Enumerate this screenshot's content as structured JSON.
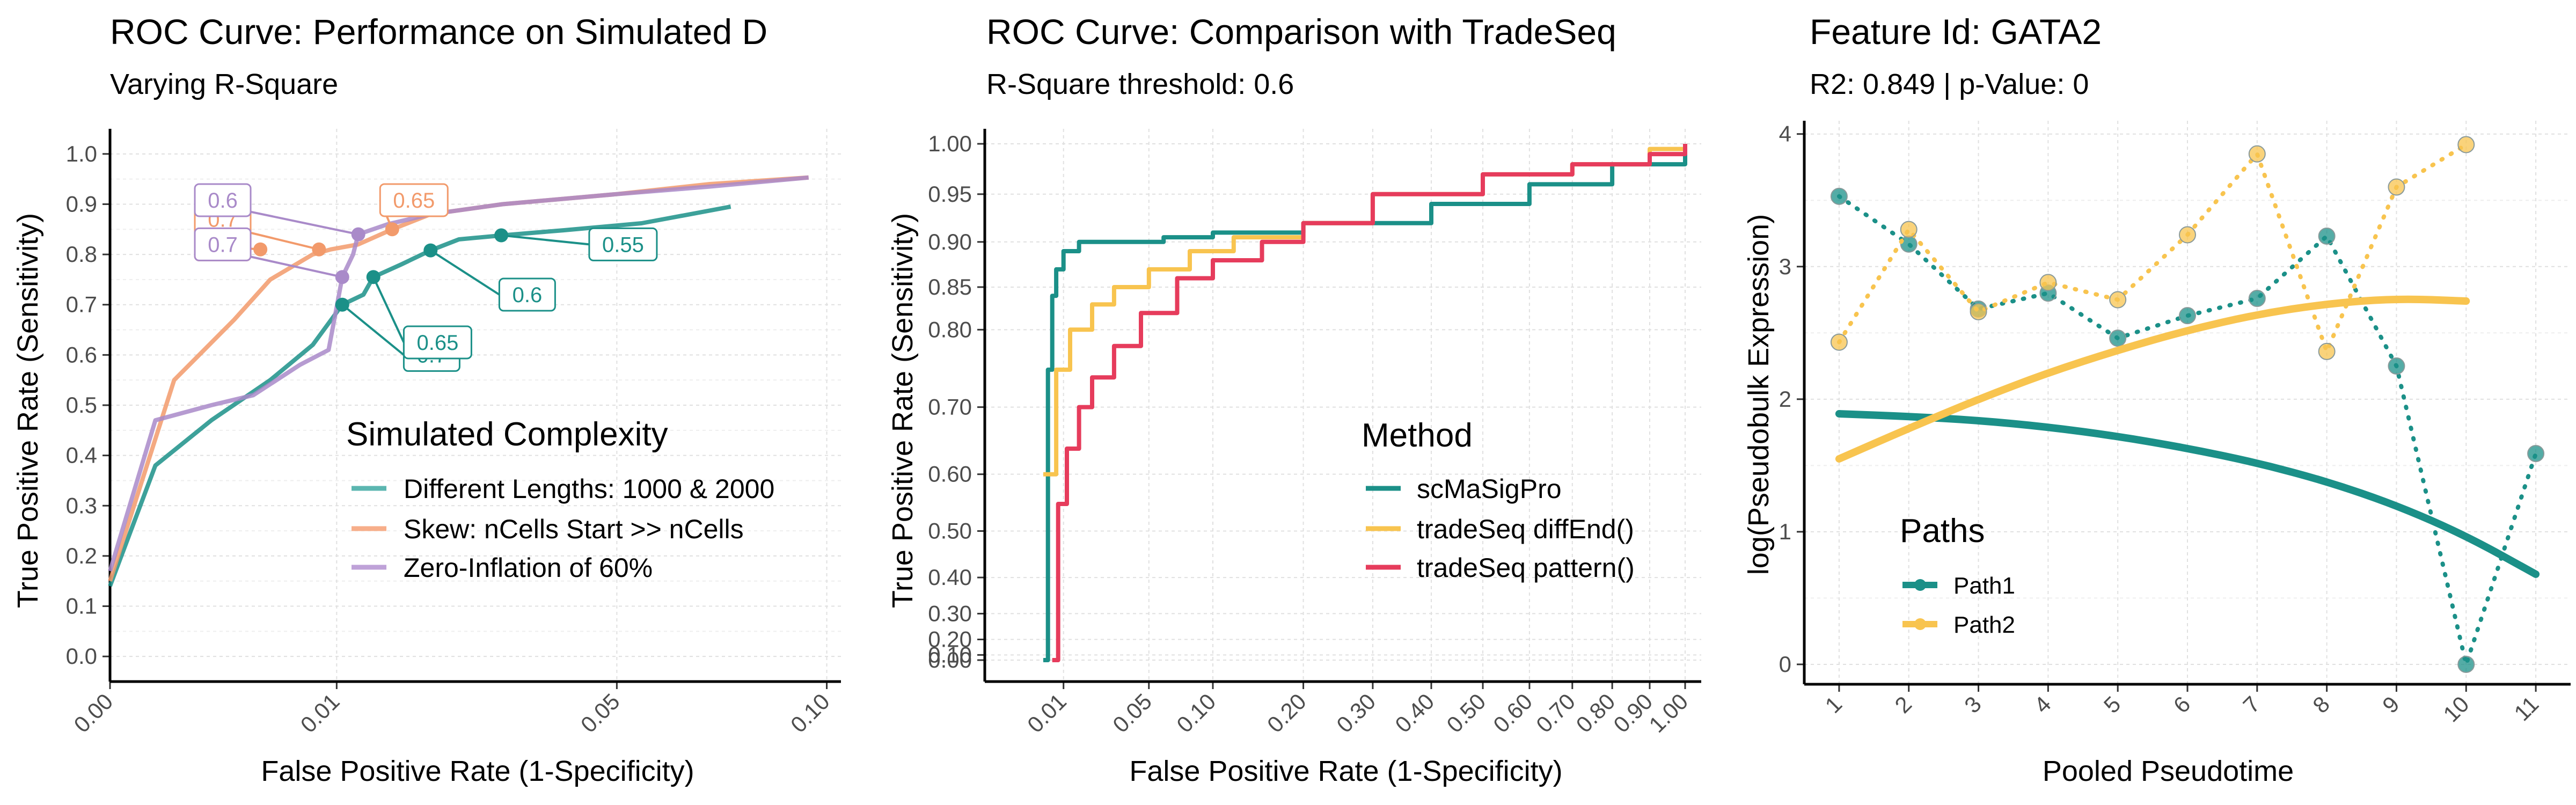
{
  "colors": {
    "teal": "#1b9088",
    "orange": "#f29a6b",
    "purple": "#a98ac9",
    "yellow": "#f8c44f",
    "red": "#e63c5c",
    "teal_legend": "#5bb6b0",
    "orange_legend": "#f7ae8a",
    "purple_legend": "#bfa2d8"
  },
  "panel1": {
    "title": "ROC Curve: Performance on Simulated D",
    "subtitle": "Varying R-Square",
    "xlabel": "False Positive Rate (1-Specificity)",
    "ylabel": "True Positive Rate (Sensitivity)",
    "legend_title": "Simulated Complexity",
    "legend": [
      "Different Lengths: 1000 & 2000",
      "Skew: nCells Start >> nCells",
      "Zero-Inflation of 60%"
    ]
  },
  "panel2": {
    "title": "ROC Curve: Comparison with TradeSeq",
    "subtitle": "R-Square threshold: 0.6",
    "xlabel": "False Positive Rate (1-Specificity)",
    "ylabel": "True Positive Rate (Sensitivity)",
    "legend_title": "Method",
    "legend": [
      "scMaSigPro",
      "tradeSeq diffEnd()",
      "tradeSeq pattern()"
    ]
  },
  "panel3": {
    "title": "Feature Id: GATA2",
    "subtitle": "R2: 0.849 | p-Value: 0",
    "xlabel": "Pooled Pseudotime",
    "ylabel": "log(Pseudobulk Expression)",
    "legend_title": "Paths",
    "legend": [
      "Path1",
      "Path2"
    ]
  },
  "chart_data": [
    {
      "type": "line",
      "title": "ROC Curve: Performance on Simulated D",
      "subtitle": "Varying R-Square",
      "xlabel": "False Positive Rate (1-Specificity)",
      "ylabel": "True Positive Rate (Sensitivity)",
      "x_scale": "sqrt",
      "xlim": [
        0,
        0.104
      ],
      "ylim": [
        -0.05,
        1.05
      ],
      "xticks": [
        0.0,
        0.01,
        0.05,
        0.1
      ],
      "xtick_labels": [
        "0.00",
        "0.01",
        "0.05",
        "0.10"
      ],
      "yticks": [
        0.0,
        0.1,
        0.2,
        0.3,
        0.4,
        0.5,
        0.6,
        0.7,
        0.8,
        0.9,
        1.0
      ],
      "ytick_labels": [
        "0.0",
        "0.1",
        "0.2",
        "0.3",
        "0.4",
        "0.5",
        "0.6",
        "0.7",
        "0.8",
        "0.9",
        "1.0"
      ],
      "grid": true,
      "legend_title": "Simulated Complexity",
      "legend_position": "bottom-right",
      "series": [
        {
          "name": "Different Lengths: 1000 & 2000",
          "color": "#1b9088",
          "points": [
            [
              0,
              0.14
            ],
            [
              0.0004,
              0.38
            ],
            [
              0.002,
              0.47
            ],
            [
              0.005,
              0.55
            ],
            [
              0.008,
              0.62
            ],
            [
              0.0105,
              0.7
            ],
            [
              0.0125,
              0.72
            ],
            [
              0.0135,
              0.755
            ],
            [
              0.0165,
              0.78
            ],
            [
              0.02,
              0.808
            ],
            [
              0.0237,
              0.83
            ],
            [
              0.03,
              0.838
            ],
            [
              0.04,
              0.848
            ],
            [
              0.055,
              0.862
            ],
            [
              0.075,
              0.895
            ]
          ],
          "labeled_points": [
            {
              "x": 0.0105,
              "y": 0.7,
              "label": "0.7",
              "label_x": 0.0168,
              "label_y": 0.6
            },
            {
              "x": 0.0135,
              "y": 0.755,
              "label": "0.65",
              "label_x": 0.0168,
              "label_y": 0.625
            },
            {
              "x": 0.02,
              "y": 0.808,
              "label": "0.6",
              "label_x": 0.0295,
              "label_y": 0.72
            },
            {
              "x": 0.0298,
              "y": 0.838,
              "label": "0.55",
              "label_x": 0.0447,
              "label_y": 0.82
            }
          ]
        },
        {
          "name": "Skew: nCells Start >> nCells",
          "color": "#f29a6b",
          "points": [
            [
              0,
              0.15
            ],
            [
              0.0008,
              0.55
            ],
            [
              0.003,
              0.67
            ],
            [
              0.005,
              0.75
            ],
            [
              0.008,
              0.8
            ],
            [
              0.0095,
              0.81
            ],
            [
              0.012,
              0.82
            ],
            [
              0.0155,
              0.85
            ],
            [
              0.02,
              0.88
            ],
            [
              0.03,
              0.9
            ],
            [
              0.05,
              0.92
            ],
            [
              0.07,
              0.94
            ],
            [
              0.095,
              0.953
            ]
          ],
          "labeled_points": [
            {
              "x": 0.0044,
              "y": 0.81,
              "label": "0.7",
              "label_x": 0.0014,
              "label_y": 0.82
            },
            {
              "x": 0.0085,
              "y": 0.81,
              "label": "0.7",
              "label_x": 0.0014,
              "label_y": 0.87
            },
            {
              "x": 0.0155,
              "y": 0.85,
              "label": "0.65",
              "label_x": 0.0142,
              "label_y": 0.908
            }
          ]
        },
        {
          "name": "Zero-Inflation of 60%",
          "color": "#a98ac9",
          "points": [
            [
              0,
              0.17
            ],
            [
              0.0004,
              0.47
            ],
            [
              0.002,
              0.5
            ],
            [
              0.004,
              0.52
            ],
            [
              0.007,
              0.58
            ],
            [
              0.0093,
              0.61
            ],
            [
              0.0105,
              0.755
            ],
            [
              0.0115,
              0.8
            ],
            [
              0.012,
              0.84
            ],
            [
              0.015,
              0.86
            ],
            [
              0.02,
              0.88
            ],
            [
              0.03,
              0.9
            ],
            [
              0.05,
              0.92
            ],
            [
              0.07,
              0.935
            ],
            [
              0.095,
              0.953
            ]
          ],
          "labeled_points": [
            {
              "x": 0.0105,
              "y": 0.755,
              "label": "0.7",
              "label_x": 0.0014,
              "label_y": 0.82
            },
            {
              "x": 0.012,
              "y": 0.84,
              "label": "0.6",
              "label_x": 0.0014,
              "label_y": 0.908
            }
          ]
        }
      ]
    },
    {
      "type": "line",
      "title": "ROC Curve: Comparison with TradeSeq",
      "subtitle": "R-Square threshold: 0.6",
      "xlabel": "False Positive Rate (1-Specificity)",
      "ylabel": "True Positive Rate (Sensitivity)",
      "x_scale": "sqrt",
      "y_scale": "square",
      "xlim": [
        0,
        1.0
      ],
      "ylim": [
        -0.05,
        1.05
      ],
      "xticks": [
        0.01,
        0.05,
        0.1,
        0.2,
        0.3,
        0.4,
        0.5,
        0.6,
        0.7,
        0.8,
        0.9,
        1.0
      ],
      "xtick_labels": [
        "0.01",
        "0.05",
        "0.10",
        "0.20",
        "0.30",
        "0.40",
        "0.50",
        "0.60",
        "0.70",
        "0.80",
        "0.90",
        "1.00"
      ],
      "yticks": [
        0.0,
        0.1,
        0.2,
        0.3,
        0.4,
        0.5,
        0.6,
        0.7,
        0.8,
        0.85,
        0.9,
        0.95,
        1.0
      ],
      "ytick_labels": [
        "0.00",
        "0.10",
        "0.20",
        "0.30",
        "0.40",
        "0.50",
        "0.60",
        "0.70",
        "0.80",
        "0.85",
        "0.90",
        "0.95",
        "1.00"
      ],
      "grid": true,
      "legend_title": "Method",
      "legend_position": "bottom-right",
      "series": [
        {
          "name": "scMaSigPro",
          "color": "#1b9088",
          "points": [
            [
              0.005,
              0.0
            ],
            [
              0.006,
              0.75
            ],
            [
              0.007,
              0.84
            ],
            [
              0.008,
              0.87
            ],
            [
              0.01,
              0.89
            ],
            [
              0.015,
              0.9
            ],
            [
              0.03,
              0.9
            ],
            [
              0.06,
              0.905
            ],
            [
              0.1,
              0.91
            ],
            [
              0.2,
              0.92
            ],
            [
              0.4,
              0.94
            ],
            [
              0.6,
              0.96
            ],
            [
              0.8,
              0.98
            ],
            [
              1.0,
              1.0
            ]
          ]
        },
        {
          "name": "tradeSeq diffEnd()",
          "color": "#f8c44f",
          "points": [
            [
              0.005,
              0.6
            ],
            [
              0.008,
              0.75
            ],
            [
              0.012,
              0.8
            ],
            [
              0.02,
              0.83
            ],
            [
              0.03,
              0.85
            ],
            [
              0.05,
              0.87
            ],
            [
              0.08,
              0.89
            ],
            [
              0.12,
              0.905
            ],
            [
              0.2,
              0.92
            ],
            [
              0.3,
              0.95
            ],
            [
              0.5,
              0.97
            ],
            [
              0.7,
              0.98
            ],
            [
              0.9,
              0.995
            ],
            [
              1.0,
              1.0
            ]
          ]
        },
        {
          "name": "tradeSeq pattern()",
          "color": "#e63c5c",
          "points": [
            [
              0.007,
              0.0
            ],
            [
              0.0085,
              0.55
            ],
            [
              0.011,
              0.64
            ],
            [
              0.015,
              0.7
            ],
            [
              0.02,
              0.74
            ],
            [
              0.03,
              0.78
            ],
            [
              0.045,
              0.82
            ],
            [
              0.07,
              0.86
            ],
            [
              0.1,
              0.88
            ],
            [
              0.15,
              0.9
            ],
            [
              0.2,
              0.92
            ],
            [
              0.3,
              0.95
            ],
            [
              0.5,
              0.97
            ],
            [
              0.7,
              0.98
            ],
            [
              0.9,
              0.99
            ],
            [
              1.0,
              1.0
            ]
          ]
        }
      ]
    },
    {
      "type": "line",
      "title": "Feature Id: GATA2",
      "subtitle": "R2: 0.849 | p-Value: 0",
      "xlabel": "Pooled Pseudotime",
      "ylabel": "log(Pseudobulk Expression)",
      "xlim": [
        0.5,
        11.5
      ],
      "ylim": [
        -0.15,
        4.1
      ],
      "xticks": [
        1,
        2,
        3,
        4,
        5,
        6,
        7,
        8,
        9,
        10,
        11
      ],
      "yticks": [
        0,
        1,
        2,
        3,
        4
      ],
      "grid": true,
      "legend_title": "Paths",
      "legend_position": "bottom-left",
      "series": [
        {
          "name": "Path1",
          "color": "#1b9088",
          "x": [
            1,
            2,
            3,
            4,
            5,
            6,
            7,
            8,
            9,
            10,
            11
          ],
          "points_y": [
            3.53,
            3.17,
            2.68,
            2.8,
            2.46,
            2.63,
            2.76,
            3.23,
            2.25,
            0.0,
            1.59
          ],
          "fit_y": [
            1.89,
            1.87,
            1.84,
            1.79,
            1.72,
            1.63,
            1.52,
            1.38,
            1.2,
            0.97,
            0.68
          ]
        },
        {
          "name": "Path2",
          "color": "#f8c44f",
          "x": [
            1,
            2,
            3,
            4,
            5,
            6,
            7,
            8,
            9,
            10
          ],
          "points_y": [
            2.43,
            3.28,
            2.66,
            2.88,
            2.75,
            3.24,
            3.85,
            2.36,
            3.6,
            3.92
          ],
          "fit_y": [
            1.55,
            1.78,
            2.0,
            2.2,
            2.37,
            2.52,
            2.64,
            2.72,
            2.76,
            2.74
          ]
        }
      ]
    }
  ]
}
